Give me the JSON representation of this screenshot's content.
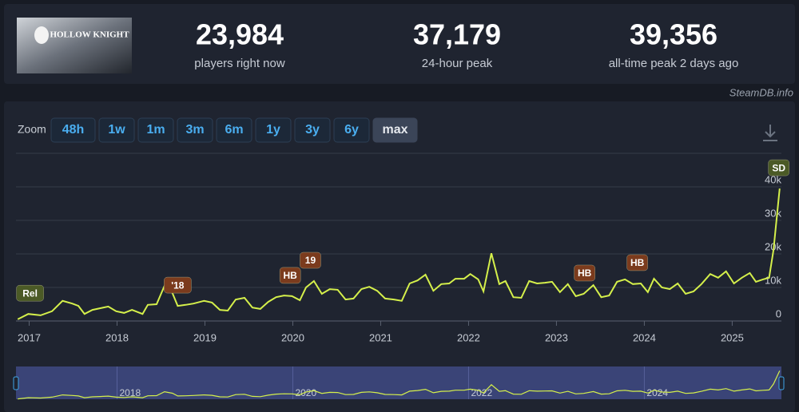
{
  "header": {
    "logo_text": "HOLLOW KNIGHT",
    "stats": [
      {
        "value": "23,984",
        "label": "players right now"
      },
      {
        "value": "37,179",
        "label": "24-hour peak"
      },
      {
        "value": "39,356",
        "label": "all-time peak 2 days ago"
      }
    ],
    "source": "SteamDB.info"
  },
  "zoom": {
    "label": "Zoom",
    "buttons": [
      "48h",
      "1w",
      "1m",
      "3m",
      "6m",
      "1y",
      "3y",
      "6y",
      "max"
    ],
    "active": 8
  },
  "chart_data": {
    "type": "line",
    "color": "#d5f04b",
    "grid": true,
    "x": [
      2016.87,
      2016.99,
      2017.13,
      2017.26,
      2017.38,
      2017.49,
      2017.56,
      2017.63,
      2017.72,
      2017.81,
      2017.9,
      2017.99,
      2018.08,
      2018.17,
      2018.29,
      2018.35,
      2018.45,
      2018.54,
      2018.63,
      2018.69,
      2018.78,
      2018.87,
      2018.99,
      2019.08,
      2019.17,
      2019.26,
      2019.35,
      2019.45,
      2019.54,
      2019.63,
      2019.72,
      2019.81,
      2019.9,
      2019.99,
      2020.08,
      2020.15,
      2020.24,
      2020.33,
      2020.42,
      2020.51,
      2020.6,
      2020.69,
      2020.78,
      2020.87,
      2020.96,
      2021.05,
      2021.15,
      2021.24,
      2021.33,
      2021.42,
      2021.51,
      2021.6,
      2021.69,
      2021.78,
      2021.85,
      2021.95,
      2022.02,
      2022.11,
      2022.17,
      2022.26,
      2022.35,
      2022.42,
      2022.51,
      2022.6,
      2022.69,
      2022.78,
      2022.87,
      2022.95,
      2023.04,
      2023.13,
      2023.22,
      2023.31,
      2023.42,
      2023.51,
      2023.6,
      2023.69,
      2023.78,
      2023.87,
      2023.96,
      2024.04,
      2024.11,
      2024.2,
      2024.29,
      2024.38,
      2024.47,
      2024.56,
      2024.65,
      2024.75,
      2024.84,
      2024.93,
      2025.02,
      2025.11,
      2025.2,
      2025.27,
      2025.35,
      2025.42,
      2025.47,
      2025.54
    ],
    "values": [
      500,
      2100,
      1700,
      2900,
      6000,
      5200,
      4500,
      2100,
      3300,
      3800,
      4300,
      2900,
      2400,
      3300,
      2100,
      4800,
      5000,
      10500,
      8300,
      4500,
      4800,
      5200,
      6000,
      5500,
      3300,
      3100,
      6400,
      6900,
      4000,
      3600,
      5700,
      7100,
      7600,
      7400,
      6200,
      10000,
      11900,
      8100,
      9500,
      9300,
      6400,
      6700,
      9500,
      10200,
      9000,
      6700,
      6400,
      6000,
      11200,
      12100,
      13800,
      9000,
      11000,
      11200,
      12600,
      12600,
      14000,
      12400,
      8800,
      20200,
      11000,
      11900,
      7100,
      6900,
      11900,
      11200,
      11400,
      11700,
      8600,
      11000,
      7400,
      8100,
      10700,
      7100,
      7600,
      11700,
      12400,
      11000,
      11200,
      8600,
      12600,
      10000,
      9500,
      11200,
      8100,
      8800,
      11000,
      14000,
      12900,
      14800,
      11200,
      12900,
      14300,
      11700,
      12400,
      12900,
      21200,
      39500
    ],
    "xlim": [
      2016.85,
      2025.56
    ],
    "xticks": [
      2017,
      2018,
      2019,
      2020,
      2021,
      2022,
      2023,
      2024,
      2025
    ],
    "ylim": [
      0,
      50000
    ],
    "yticks": [
      0,
      {
        "value": 10000,
        "label": "10k"
      },
      {
        "value": 20000,
        "label": "20k"
      },
      {
        "value": 30000,
        "label": "30k"
      },
      {
        "value": 40000,
        "label": "40k"
      }
    ],
    "annotations": [
      {
        "x": 2017.01,
        "label": "Rel",
        "color": "#4b5a26"
      },
      {
        "x": 2018.69,
        "label": "'18",
        "color": "#7b3b1d"
      },
      {
        "x": 2019.97,
        "label": "HB",
        "color": "#7b3b1d"
      },
      {
        "x": 2020.2,
        "label": "19",
        "color": "#7b3b1d"
      },
      {
        "x": 2023.32,
        "label": "HB",
        "color": "#7b3b1d"
      },
      {
        "x": 2023.92,
        "label": "HB",
        "color": "#7b3b1d"
      },
      {
        "x": 2025.53,
        "label": "SD",
        "color": "#4b5a26"
      }
    ],
    "navigator_ticks": [
      2018,
      2020,
      2022,
      2024
    ]
  }
}
